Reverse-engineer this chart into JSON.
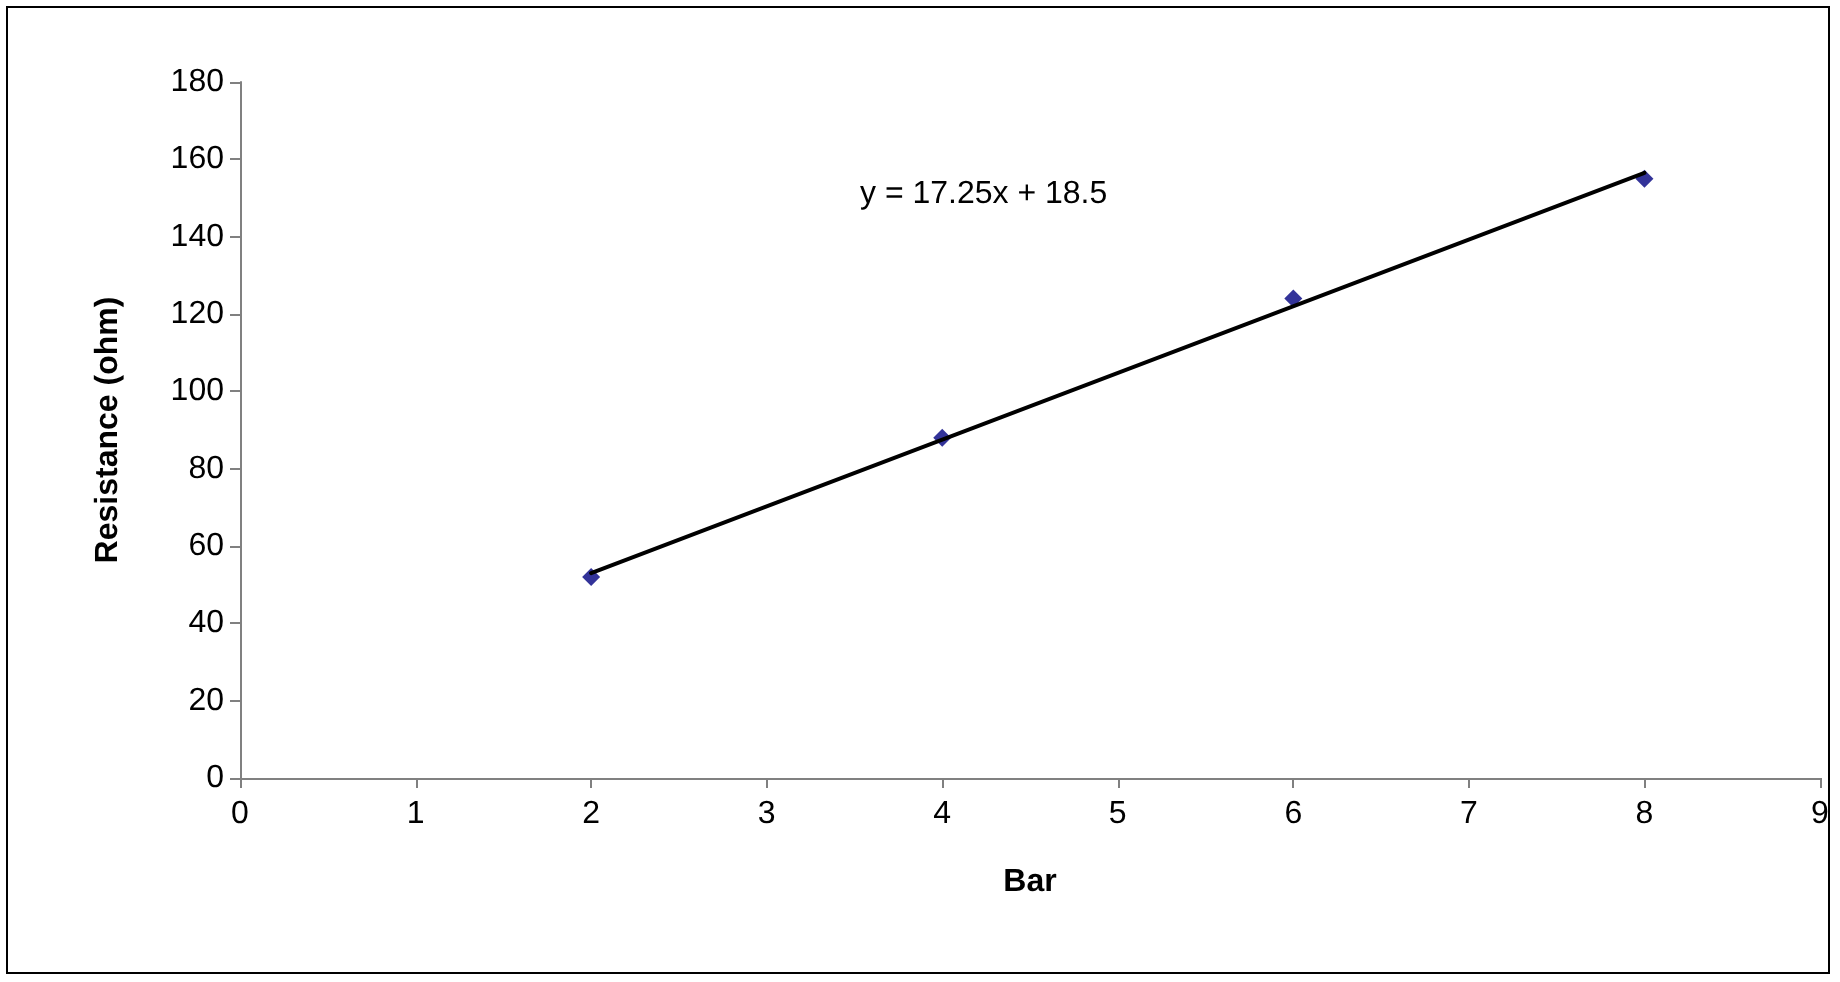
{
  "chart_data": {
    "type": "scatter",
    "xlabel": "Bar",
    "ylabel": "Resistance (ohm)",
    "xlim": [
      0,
      9
    ],
    "xticks": [
      0,
      1,
      2,
      3,
      4,
      5,
      6,
      7,
      8,
      9
    ],
    "ylim": [
      0,
      180
    ],
    "yticks": [
      0,
      20,
      40,
      60,
      80,
      100,
      120,
      140,
      160,
      180
    ],
    "grid": false,
    "marker": "diamond",
    "series": [
      {
        "color": "#000080",
        "x": [
          2,
          4,
          6,
          8
        ],
        "values": [
          52,
          88,
          124,
          155
        ]
      },
      {
        "type": "line",
        "color": "#000000",
        "x": [
          2,
          8
        ],
        "values": [
          53,
          156.5
        ],
        "marker": "none",
        "line_style": "solid"
      }
    ],
    "annotations": [
      "y = 17.25x + 18.5"
    ]
  }
}
